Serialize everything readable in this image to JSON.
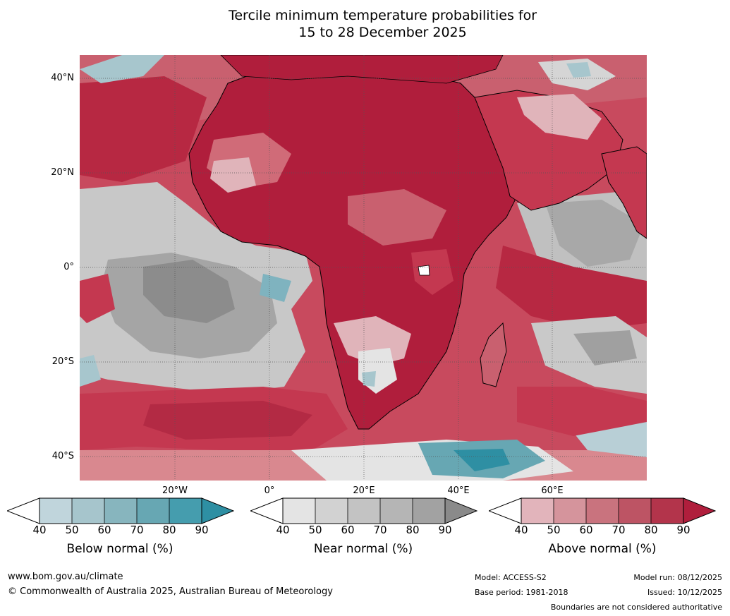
{
  "title": {
    "line1": "Tercile minimum temperature probabilities for",
    "line2": "15 to 28 December 2025"
  },
  "map": {
    "lat_labels": [
      "40°N",
      "20°N",
      "0°",
      "20°S",
      "40°S"
    ],
    "lon_labels": [
      "20°W",
      "0°",
      "20°E",
      "40°E",
      "60°E"
    ],
    "colors": {
      "ocean_red": "#c43850",
      "deep_red": "#b01e3c",
      "mid_red": "#d06b78",
      "light_red": "#e0b4ba",
      "grey_dark": "#8c8c8c",
      "grey_mid": "#b3b3b3",
      "grey_light": "#d5d5d5",
      "teal": "#4a9fb2",
      "teal_light": "#a7c6cd"
    }
  },
  "legend": {
    "tick_values": [
      "40",
      "50",
      "60",
      "70",
      "80",
      "90"
    ],
    "below": {
      "title": "Below normal (%)",
      "colors": [
        "#c0d5dc",
        "#a6c5cc",
        "#87b5be",
        "#67a7b3",
        "#459dae",
        "#2e8fa3"
      ]
    },
    "near": {
      "title": "Near normal (%)",
      "colors": [
        "#e4e4e4",
        "#d2d2d2",
        "#c3c3c3",
        "#b5b5b5",
        "#a2a2a2",
        "#8a8a8a"
      ]
    },
    "above": {
      "title": "Above normal (%)",
      "colors": [
        "#e2b4bb",
        "#d5949c",
        "#c9737e",
        "#bd5464",
        "#b3344b",
        "#b01e3c"
      ]
    }
  },
  "footer": {
    "website": "www.bom.gov.au/climate",
    "copyright": "© Commonwealth of Australia 2025, Australian Bureau of Meteorology",
    "model": "Model: ACCESS-S2",
    "base_period": "Base period: 1981-2018",
    "model_run": "Model run: 08/12/2025",
    "issued": "Issued: 10/12/2025",
    "disclaimer": "Boundaries are not considered authoritative"
  }
}
